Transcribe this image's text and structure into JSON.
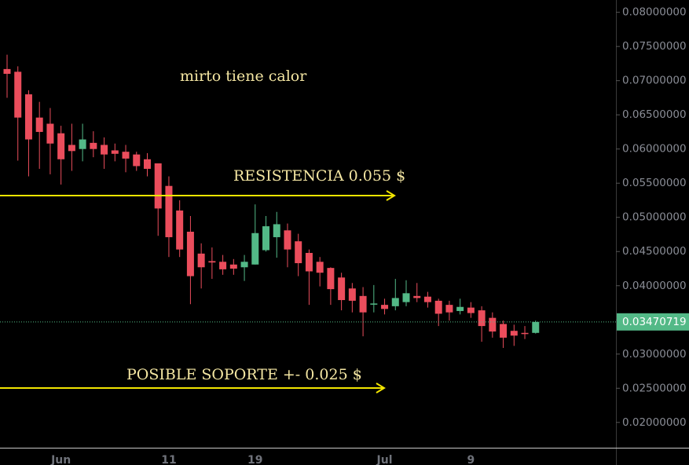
{
  "chart_data": {
    "type": "candlestick",
    "categories": [
      null,
      null,
      null,
      null,
      null,
      "Jun",
      null,
      null,
      null,
      null,
      null,
      null,
      null,
      null,
      null,
      "11",
      null,
      null,
      null,
      null,
      null,
      null,
      null,
      "19",
      null,
      null,
      null,
      null,
      null,
      null,
      null,
      null,
      null,
      null,
      null,
      "Jul",
      null,
      null,
      null,
      null,
      null,
      null,
      null,
      "9",
      null,
      null,
      null,
      null,
      null,
      null
    ],
    "series": [
      {
        "name": "open",
        "values": [
          0.0717,
          0.0713,
          0.068,
          0.0646,
          0.0637,
          0.0623,
          0.0606,
          0.06,
          0.0609,
          0.0606,
          0.0598,
          0.0596,
          0.0592,
          0.0585,
          0.0579,
          0.0546,
          0.051,
          0.0479,
          0.0447,
          0.0436,
          0.0435,
          0.0431,
          0.0427,
          0.0431,
          0.0452,
          0.0471,
          0.0481,
          0.0465,
          0.0448,
          0.0435,
          0.0426,
          0.0412,
          0.0396,
          0.0385,
          0.0373,
          0.0372,
          0.037,
          0.0376,
          0.0385,
          0.0384,
          0.0378,
          0.0372,
          0.0363,
          0.0368,
          0.0364,
          0.0353,
          0.0344,
          0.0334,
          0.0331,
          0.0331
        ]
      },
      {
        "name": "high",
        "values": [
          0.0738,
          0.0721,
          0.0686,
          0.0669,
          0.066,
          0.0634,
          0.0637,
          0.0637,
          0.0626,
          0.0617,
          0.0608,
          0.0606,
          0.0596,
          0.0594,
          0.0579,
          0.056,
          0.0525,
          0.0502,
          0.0462,
          0.0456,
          0.0445,
          0.0439,
          0.0445,
          0.0519,
          0.0502,
          0.0508,
          0.0491,
          0.0476,
          0.0453,
          0.0442,
          0.0427,
          0.0419,
          0.0404,
          0.0398,
          0.0401,
          0.0381,
          0.041,
          0.0408,
          0.0404,
          0.0391,
          0.0381,
          0.0378,
          0.0381,
          0.0376,
          0.037,
          0.0361,
          0.0349,
          0.0343,
          0.0341,
          0.0349
        ]
      },
      {
        "name": "low",
        "values": [
          0.0675,
          0.0583,
          0.056,
          0.0571,
          0.0563,
          0.0548,
          0.0568,
          0.0582,
          0.0588,
          0.0571,
          0.0582,
          0.0566,
          0.0568,
          0.056,
          0.0473,
          0.0442,
          0.0442,
          0.0373,
          0.0396,
          0.041,
          0.0416,
          0.0416,
          0.0407,
          0.0431,
          0.045,
          0.0441,
          0.0427,
          0.0414,
          0.0372,
          0.0399,
          0.0372,
          0.0364,
          0.0361,
          0.0326,
          0.0361,
          0.0358,
          0.0364,
          0.037,
          0.0376,
          0.0368,
          0.0341,
          0.0349,
          0.0358,
          0.0353,
          0.0318,
          0.0324,
          0.0309,
          0.0312,
          0.0322,
          0.033
        ]
      },
      {
        "name": "close",
        "values": [
          0.071,
          0.0646,
          0.0614,
          0.0625,
          0.0608,
          0.0585,
          0.0597,
          0.0614,
          0.06,
          0.0592,
          0.0593,
          0.0586,
          0.0575,
          0.0571,
          0.0513,
          0.0471,
          0.0453,
          0.0414,
          0.0427,
          0.0434,
          0.0424,
          0.0425,
          0.0435,
          0.0477,
          0.0487,
          0.049,
          0.0453,
          0.0433,
          0.0421,
          0.0419,
          0.0395,
          0.0379,
          0.0378,
          0.0361,
          0.0374,
          0.0366,
          0.0382,
          0.0389,
          0.0382,
          0.0376,
          0.0359,
          0.0361,
          0.0369,
          0.036,
          0.0341,
          0.0333,
          0.0324,
          0.0327,
          0.033,
          0.0347
        ]
      }
    ],
    "up_color": "#53b987",
    "down_color": "#eb4d5c",
    "last_price": 0.03470719,
    "ylim": [
      0.0163,
      0.0818
    ],
    "yticks": [
      {
        "value": 0.02,
        "label": "0.02000000"
      },
      {
        "value": 0.025,
        "label": "0.02500000"
      },
      {
        "value": 0.03,
        "label": "0.03000000"
      },
      {
        "value": 0.035,
        "label": "0.03500000"
      },
      {
        "value": 0.04,
        "label": "0.04000000"
      },
      {
        "value": 0.045,
        "label": "0.04500000"
      },
      {
        "value": 0.05,
        "label": "0.05000000"
      },
      {
        "value": 0.055,
        "label": "0.05500000"
      },
      {
        "value": 0.06,
        "label": "0.06000000"
      },
      {
        "value": 0.065,
        "label": "0.06500000"
      },
      {
        "value": 0.07,
        "label": "0.07000000"
      },
      {
        "value": 0.075,
        "label": "0.07500000"
      },
      {
        "value": 0.08,
        "label": "0.08000000"
      }
    ],
    "annotations": [
      "mirto tiene calor",
      "RESISTENCIA 0.055 $",
      "POSIBLE SOPORTE +- 0.025 $"
    ]
  }
}
